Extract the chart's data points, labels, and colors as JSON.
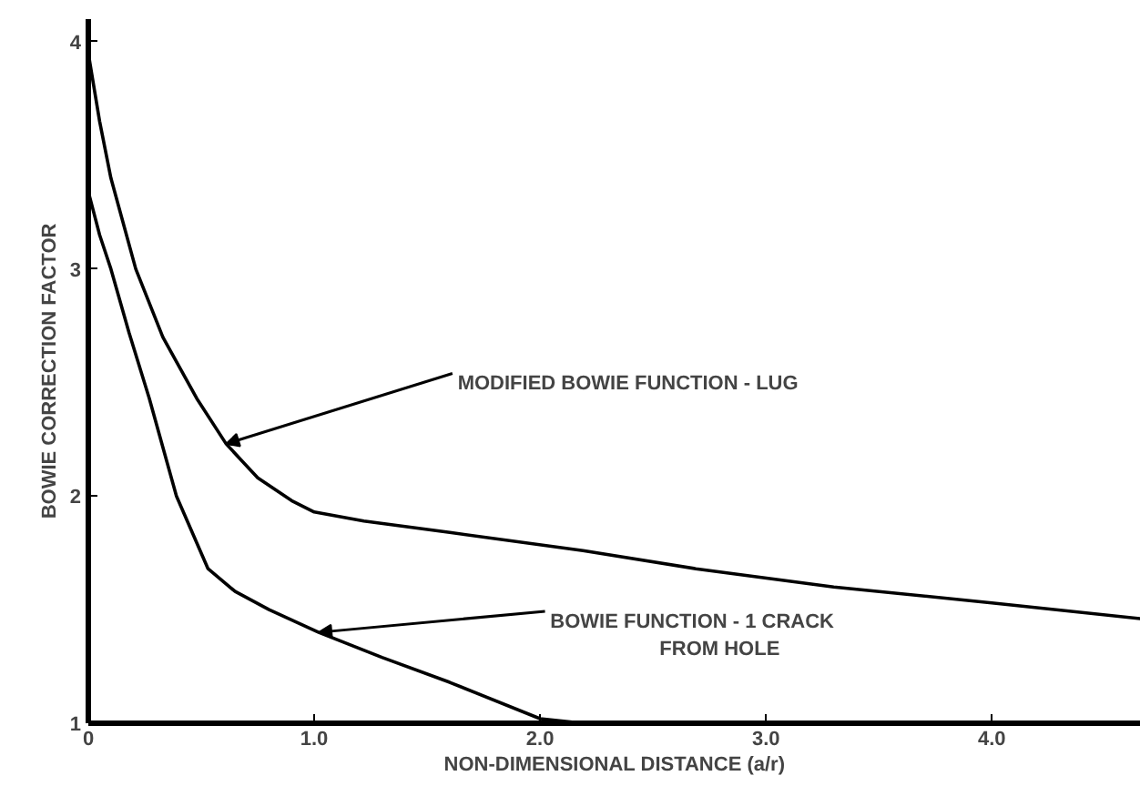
{
  "chart_data": {
    "type": "line",
    "xlabel": "NON-DIMENSIONAL DISTANCE (a/r)",
    "ylabel": "BOWIE CORRECTION FACTOR",
    "xlim": [
      0,
      4.66
    ],
    "ylim": [
      1,
      4.1
    ],
    "xticks": [
      0,
      {
        "value": 1,
        "label": "1.0"
      },
      {
        "value": 2,
        "label": "2.0"
      },
      {
        "value": 3,
        "label": "3.0"
      },
      {
        "value": 4,
        "label": "4.0"
      }
    ],
    "yticks": [
      1,
      2,
      3,
      4
    ],
    "grid": false,
    "marker": "none",
    "line_style": "solid",
    "series": [
      {
        "color": "#000000",
        "x": [
          0,
          0.05,
          0.1,
          0.21,
          0.33,
          0.48,
          0.61,
          0.75,
          0.9,
          1.0,
          1.22,
          1.6,
          2.19,
          2.69,
          3.3,
          4.0,
          4.66
        ],
        "values": [
          3.95,
          3.65,
          3.4,
          3.0,
          2.7,
          2.43,
          2.23,
          2.08,
          1.98,
          1.93,
          1.89,
          1.84,
          1.76,
          1.68,
          1.6,
          1.53,
          1.46
        ]
      },
      {
        "color": "#000000",
        "x": [
          0,
          0.05,
          0.1,
          0.18,
          0.27,
          0.39,
          0.53,
          0.65,
          0.8,
          1.02,
          1.3,
          1.6,
          2.0,
          2.19
        ],
        "values": [
          3.34,
          3.15,
          3.0,
          2.72,
          2.43,
          2.0,
          1.68,
          1.58,
          1.5,
          1.4,
          1.29,
          1.18,
          1.02,
          1.0
        ]
      }
    ],
    "annotations": [
      {
        "text": "MODIFIED BOWIE FUNCTION - LUG",
        "x": 0.61,
        "y": 2.23
      },
      {
        "text": "BOWIE FUNCTION - 1 CRACK\nFROM HOLE",
        "x": 1.02,
        "y": 1.4
      }
    ]
  }
}
